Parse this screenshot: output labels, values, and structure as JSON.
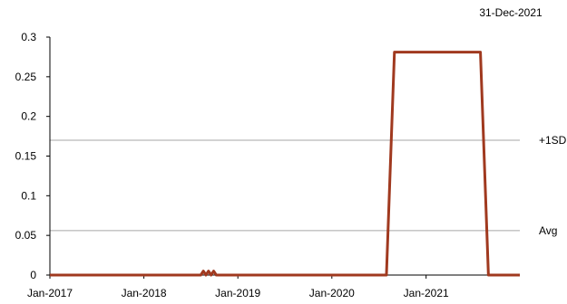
{
  "chart_data": {
    "type": "line",
    "date_label": "31-Dec-2021",
    "xlim": [
      "2017-01-01",
      "2021-12-31"
    ],
    "ylim": [
      0,
      0.3
    ],
    "y_ticks": [
      "0",
      "0.05",
      "0.1",
      "0.15",
      "0.2",
      "0.25",
      "0.3"
    ],
    "y_tick_values": [
      0,
      0.05,
      0.1,
      0.15,
      0.2,
      0.25,
      0.3
    ],
    "x_ticks": [
      "Jan-2017",
      "Jan-2018",
      "Jan-2019",
      "Jan-2020",
      "Jan-2021"
    ],
    "x_tick_dates": [
      "2017-01-01",
      "2018-01-01",
      "2019-01-01",
      "2020-01-01",
      "2021-01-01"
    ],
    "grid": false,
    "legend": "none",
    "reference_lines": [
      {
        "label": "+1SD",
        "value": 0.17
      },
      {
        "label": "Avg",
        "value": 0.056
      }
    ],
    "series": [
      {
        "color": "#a0391f",
        "points": [
          {
            "x": "2017-01-01",
            "y": 0
          },
          {
            "x": "2018-08-10",
            "y": 0
          },
          {
            "x": "2018-08-20",
            "y": 0.005
          },
          {
            "x": "2018-08-30",
            "y": 0
          },
          {
            "x": "2018-09-09",
            "y": 0.005
          },
          {
            "x": "2018-09-19",
            "y": 0
          },
          {
            "x": "2018-09-29",
            "y": 0.005
          },
          {
            "x": "2018-10-09",
            "y": 0
          },
          {
            "x": "2020-07-31",
            "y": 0
          },
          {
            "x": "2020-08-31",
            "y": 0.281
          },
          {
            "x": "2021-07-31",
            "y": 0.281
          },
          {
            "x": "2021-08-31",
            "y": 0
          },
          {
            "x": "2021-12-31",
            "y": 0
          }
        ]
      }
    ],
    "colors": {
      "series": "#a0391f",
      "reference_line": "#a6a6a6",
      "axis": "#000000"
    }
  }
}
